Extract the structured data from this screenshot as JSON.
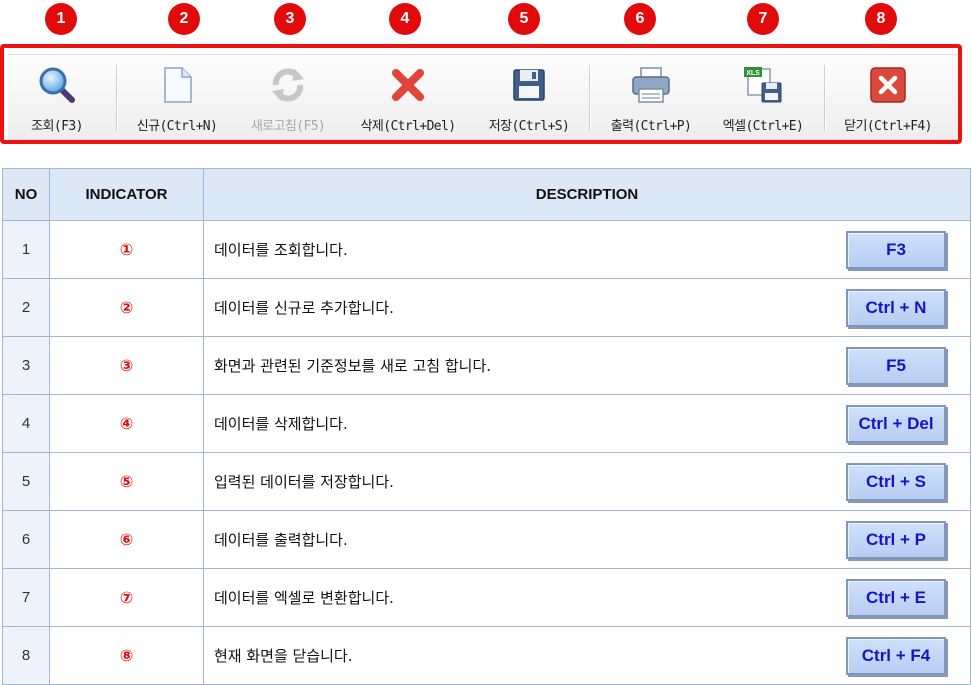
{
  "markers": [
    "1",
    "2",
    "3",
    "4",
    "5",
    "6",
    "7",
    "8"
  ],
  "toolbar": {
    "buttons": [
      {
        "label": "조회(F3)",
        "icon": "search-icon"
      },
      {
        "label": "신규(Ctrl+N)",
        "icon": "new-document-icon"
      },
      {
        "label": "새로고침(F5)",
        "icon": "refresh-icon",
        "disabled": true
      },
      {
        "label": "삭제(Ctrl+Del)",
        "icon": "delete-x-icon"
      },
      {
        "label": "저장(Ctrl+S)",
        "icon": "save-disk-icon"
      },
      {
        "label": "출력(Ctrl+P)",
        "icon": "printer-icon"
      },
      {
        "label": "엑셀(Ctrl+E)",
        "icon": "excel-save-icon",
        "badge": "XLS"
      },
      {
        "label": "닫기(Ctrl+F4)",
        "icon": "close-icon"
      }
    ]
  },
  "table": {
    "headers": {
      "no": "NO",
      "indicator": "INDICATOR",
      "description": "DESCRIPTION"
    },
    "rows": [
      {
        "no": "1",
        "indicator": "①",
        "description": "데이터를 조회합니다.",
        "key": "F3"
      },
      {
        "no": "2",
        "indicator": "②",
        "description": "데이터를 신규로 추가합니다.",
        "key": "Ctrl + N"
      },
      {
        "no": "3",
        "indicator": "③",
        "description": "화면과 관련된 기준정보를 새로 고침 합니다.",
        "key": "F5"
      },
      {
        "no": "4",
        "indicator": "④",
        "description": "데이터를 삭제합니다.",
        "key": "Ctrl + Del"
      },
      {
        "no": "5",
        "indicator": "⑤",
        "description": "입력된 데이터를 저장합니다.",
        "key": "Ctrl + S"
      },
      {
        "no": "6",
        "indicator": "⑥",
        "description": "데이터를 출력합니다.",
        "key": "Ctrl + P"
      },
      {
        "no": "7",
        "indicator": "⑦",
        "description": "데이터를 엑셀로 변환합니다.",
        "key": "Ctrl + E"
      },
      {
        "no": "8",
        "indicator": "⑧",
        "description": "현재 화면을 닫습니다.",
        "key": "Ctrl + F4"
      }
    ]
  },
  "colors": {
    "highlight": "#ee1111",
    "marker": "#e20b0b",
    "keyText": "#1515c8",
    "header": "#dde8f6"
  }
}
